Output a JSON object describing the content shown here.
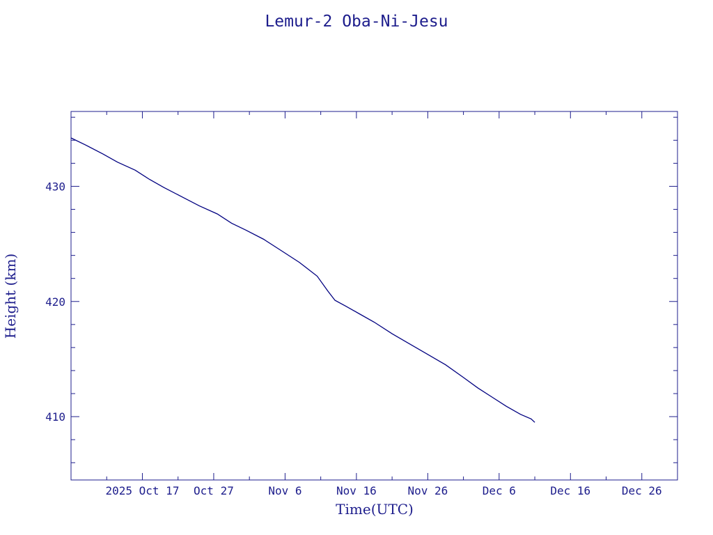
{
  "chart_data": {
    "type": "line",
    "title": "Lemur-2 Oba-Ni-Jesu",
    "xlabel": "Time(UTC)",
    "ylabel": "Height (km)",
    "x_tick_labels": [
      "2025 Oct 17",
      "Oct 27",
      "Nov  6",
      "Nov 16",
      "Nov 26",
      "Dec  6",
      "Dec 16",
      "Dec 26"
    ],
    "y_tick_labels": [
      "410",
      "420",
      "430"
    ],
    "x_range": [
      "2025-10-07T00:00Z",
      "2025-12-31T00:00Z"
    ],
    "ylim": [
      404.5,
      436.5
    ],
    "grid": false,
    "line_color": "#000080",
    "series": [
      {
        "x": [
          "2025-10-07T00:00Z",
          "2025-10-09T00:00Z",
          "2025-10-11T12:00Z",
          "2025-10-13T12:00Z",
          "2025-10-16T00:00Z",
          "2025-10-18T00:00Z",
          "2025-10-20T00:00Z",
          "2025-10-22T12:00Z",
          "2025-10-25T00:00Z",
          "2025-10-27T12:00Z",
          "2025-10-29T12:00Z",
          "2025-10-31T12:00Z",
          "2025-11-03T00:00Z",
          "2025-11-05T12:00Z",
          "2025-11-08T00:00Z",
          "2025-11-10T12:00Z",
          "2025-11-12T00:00Z",
          "2025-11-13T00:00Z",
          "2025-11-14T12:00Z",
          "2025-11-16T12:00Z",
          "2025-11-18T12:00Z",
          "2025-11-21T00:00Z",
          "2025-11-23T12:00Z",
          "2025-11-26T00:00Z",
          "2025-11-28T12:00Z",
          "2025-12-01T00:00Z",
          "2025-12-03T00:00Z",
          "2025-12-05T00:00Z",
          "2025-12-07T00:00Z",
          "2025-12-09T00:00Z",
          "2025-12-10T12:00Z",
          "2025-12-11T00:00Z"
        ],
        "y": [
          434.2,
          433.6,
          432.8,
          432.1,
          431.4,
          430.6,
          429.9,
          429.1,
          428.3,
          427.6,
          426.8,
          426.2,
          425.4,
          424.4,
          423.4,
          422.2,
          420.9,
          420.1,
          419.6,
          418.9,
          418.2,
          417.2,
          416.3,
          415.4,
          414.5,
          413.4,
          412.5,
          411.7,
          410.9,
          410.2,
          409.8,
          409.5
        ]
      }
    ]
  }
}
